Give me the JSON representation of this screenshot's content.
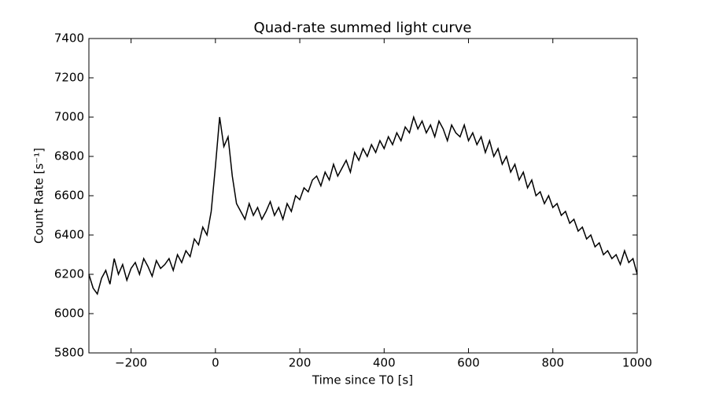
{
  "chart_data": {
    "type": "line",
    "title": "Quad-rate summed light curve",
    "xlabel": "Time since T0 [s]",
    "ylabel": "Count Rate [s⁻¹]",
    "xlim": [
      -300,
      1000
    ],
    "ylim": [
      5800,
      7400
    ],
    "xticks": [
      {
        "value": -200,
        "label": "−200"
      },
      0,
      200,
      400,
      600,
      800,
      1000
    ],
    "yticks": [
      5800,
      6000,
      6200,
      6400,
      6600,
      6800,
      7000,
      7200,
      7400
    ],
    "color": "#000000",
    "x": [
      -300,
      -290,
      -280,
      -270,
      -260,
      -250,
      -240,
      -230,
      -220,
      -210,
      -200,
      -190,
      -180,
      -170,
      -160,
      -150,
      -140,
      -130,
      -120,
      -110,
      -100,
      -90,
      -80,
      -70,
      -60,
      -50,
      -40,
      -30,
      -20,
      -10,
      0,
      10,
      20,
      30,
      40,
      50,
      60,
      70,
      80,
      90,
      100,
      110,
      120,
      130,
      140,
      150,
      160,
      170,
      180,
      190,
      200,
      210,
      220,
      230,
      240,
      250,
      260,
      270,
      280,
      290,
      300,
      310,
      320,
      330,
      340,
      350,
      360,
      370,
      380,
      390,
      400,
      410,
      420,
      430,
      440,
      450,
      460,
      470,
      480,
      490,
      500,
      510,
      520,
      530,
      540,
      550,
      560,
      570,
      580,
      590,
      600,
      610,
      620,
      630,
      640,
      650,
      660,
      670,
      680,
      690,
      700,
      710,
      720,
      730,
      740,
      750,
      760,
      770,
      780,
      790,
      800,
      810,
      820,
      830,
      840,
      850,
      860,
      870,
      880,
      890,
      900,
      910,
      920,
      930,
      940,
      950,
      960,
      970,
      980,
      990,
      1000
    ],
    "values": [
      6200,
      6130,
      6100,
      6180,
      6220,
      6150,
      6280,
      6200,
      6250,
      6170,
      6230,
      6260,
      6200,
      6280,
      6240,
      6190,
      6270,
      6230,
      6250,
      6280,
      6220,
      6300,
      6260,
      6320,
      6290,
      6380,
      6350,
      6440,
      6400,
      6520,
      6750,
      7000,
      6850,
      6900,
      6700,
      6560,
      6520,
      6480,
      6560,
      6500,
      6540,
      6480,
      6520,
      6570,
      6500,
      6540,
      6480,
      6560,
      6520,
      6600,
      6580,
      6640,
      6620,
      6680,
      6700,
      6650,
      6720,
      6680,
      6760,
      6700,
      6740,
      6780,
      6720,
      6820,
      6780,
      6840,
      6800,
      6860,
      6820,
      6880,
      6840,
      6900,
      6860,
      6920,
      6880,
      6950,
      6920,
      7000,
      6940,
      6980,
      6920,
      6960,
      6900,
      6980,
      6940,
      6880,
      6960,
      6920,
      6900,
      6960,
      6880,
      6920,
      6860,
      6900,
      6820,
      6880,
      6800,
      6840,
      6760,
      6800,
      6720,
      6760,
      6680,
      6720,
      6640,
      6680,
      6600,
      6620,
      6560,
      6600,
      6540,
      6560,
      6500,
      6520,
      6460,
      6480,
      6420,
      6440,
      6380,
      6400,
      6340,
      6360,
      6300,
      6320,
      6280,
      6300,
      6250,
      6320,
      6260,
      6280,
      6200
    ]
  }
}
